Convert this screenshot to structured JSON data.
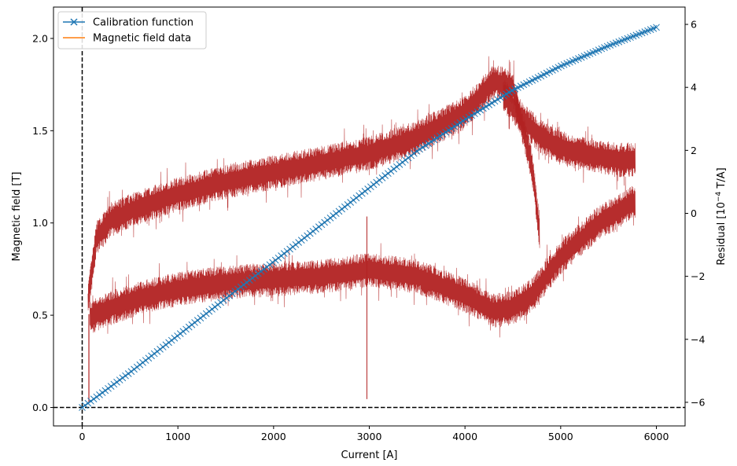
{
  "chart_data": {
    "type": "line",
    "xlabel": "Current [A]",
    "ylabel": "Magnetic field [T]",
    "ylabel_right_prefix": "Residual [10",
    "ylabel_right_exp": "−4",
    "ylabel_right_suffix": " T/A]",
    "xlim": [
      -300,
      6300
    ],
    "ylim": [
      -0.1,
      2.17
    ],
    "ylim_right": [
      -6.75,
      6.55
    ],
    "x_ticks": [
      0,
      1000,
      2000,
      3000,
      4000,
      5000,
      6000
    ],
    "x_tick_labels": [
      "0",
      "1000",
      "2000",
      "3000",
      "4000",
      "5000",
      "6000"
    ],
    "y_ticks": [
      0.0,
      0.5,
      1.0,
      1.5,
      2.0
    ],
    "y_tick_labels": [
      "0.0",
      "0.5",
      "1.0",
      "1.5",
      "2.0"
    ],
    "y_right_ticks": [
      -6,
      -4,
      -2,
      0,
      2,
      4,
      6
    ],
    "y_right_tick_labels": [
      "−6",
      "−4",
      "−2",
      "0",
      "2",
      "4",
      "6"
    ],
    "grid": false,
    "legend_position": "upper-left",
    "reference_lines": {
      "vertical_x": 0,
      "horizontal_y": 0
    },
    "series": [
      {
        "name": "Calibration function",
        "color": "#1f77b4",
        "marker": "x",
        "x": [
          0,
          500,
          1000,
          1500,
          2000,
          2500,
          3000,
          3500,
          4000,
          4500,
          5000,
          5500,
          6000
        ],
        "y": [
          0.0,
          0.19,
          0.39,
          0.59,
          0.79,
          0.99,
          1.19,
          1.39,
          1.56,
          1.72,
          1.85,
          1.96,
          2.06
        ]
      },
      {
        "name": "Magnetic field data",
        "color": "#ff7f0e",
        "marker": "none",
        "x": [
          0,
          500,
          1000,
          1500,
          2000,
          2500,
          3000,
          3500,
          4000,
          4500,
          5000,
          5500,
          6000
        ],
        "y": [
          0.0,
          0.19,
          0.39,
          0.59,
          0.79,
          0.99,
          1.19,
          1.39,
          1.56,
          1.72,
          1.85,
          1.96,
          2.06
        ]
      }
    ],
    "residual_series": {
      "color": "#b22222",
      "axis": "right",
      "upper_branch": {
        "x": [
          60,
          150,
          300,
          600,
          1000,
          1500,
          2000,
          2500,
          3000,
          3500,
          4000,
          4300,
          4500,
          4700,
          4780
        ],
        "y": [
          -2.8,
          -0.8,
          -0.2,
          0.2,
          0.6,
          1.0,
          1.3,
          1.6,
          1.9,
          2.4,
          3.2,
          4.2,
          4.0,
          1.5,
          -0.6
        ]
      },
      "lower_branch": {
        "x": [
          80,
          300,
          600,
          1000,
          1500,
          2000,
          2500,
          3000,
          3500,
          4000,
          4300,
          4500,
          4700,
          5000,
          5400,
          5780
        ],
        "y": [
          -3.3,
          -3.0,
          -2.7,
          -2.4,
          -2.2,
          -2.1,
          -2.0,
          -1.8,
          -2.0,
          -2.6,
          -3.1,
          -3.0,
          -2.6,
          -1.4,
          -0.3,
          0.4
        ]
      },
      "return_branch": {
        "x": [
          4400,
          4600,
          4800,
          5000,
          5200,
          5400,
          5600,
          5780
        ],
        "y": [
          3.8,
          3.0,
          2.4,
          2.1,
          1.9,
          1.8,
          1.7,
          1.7
        ]
      },
      "noise_half_width": 0.55,
      "spike": {
        "x": 2975,
        "y_low": -5.9,
        "y_high": -0.1
      }
    }
  }
}
